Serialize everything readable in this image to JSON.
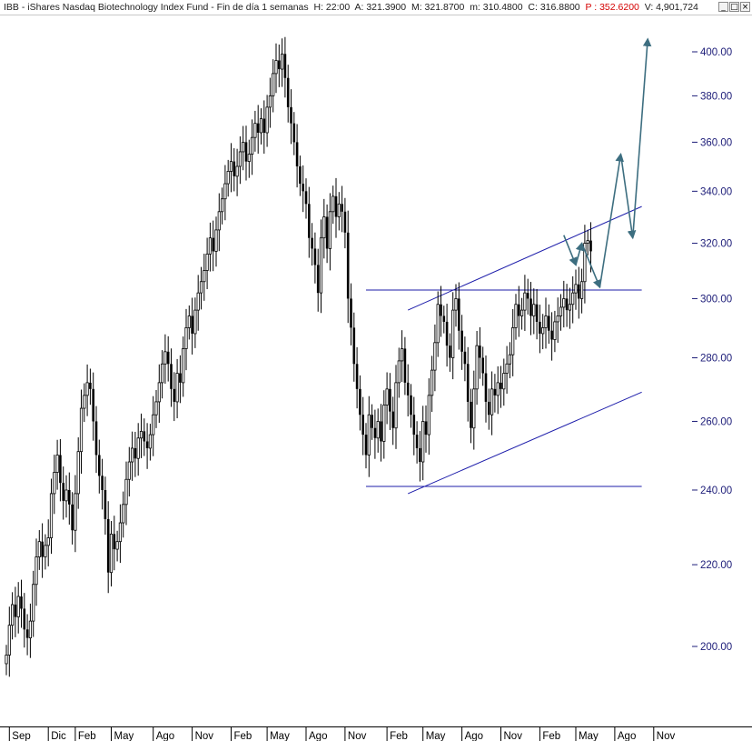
{
  "header": {
    "symbol": "IBB",
    "name": "iShares Nasdaq Biotechnology Index Fund",
    "period": "Fin de día 1 semanas",
    "h_label": "H:",
    "h_value": "22:00",
    "a_label": "A:",
    "a_value": "321.3900",
    "m_label": "M:",
    "m_value": "321.8700",
    "mn_label": "m:",
    "mn_value": "310.4800",
    "c_label": "C:",
    "c_value": "316.8800",
    "p_label": "P",
    "p_value": "352.6200",
    "v_label": "V:",
    "v_value": "4,901,724"
  },
  "window_buttons": {
    "min": "_",
    "max": "□",
    "close": "×"
  },
  "colors": {
    "candles": "#000000",
    "trendlines": "#1c1caa",
    "projection": "#3d6e80",
    "axis_text": "#1c1c78"
  },
  "chart_data": {
    "type": "candlestick",
    "y_scale": "log",
    "ylim": [
      185,
      410
    ],
    "y_ticks": [
      200,
      220,
      240,
      260,
      280,
      300,
      320,
      340,
      360,
      380,
      400
    ],
    "y_tick_labels": [
      "200.00",
      "220.00",
      "240.00",
      "260.00",
      "280.00",
      "300.00",
      "320.00",
      "340.00",
      "360.00",
      "380.00",
      "400.00"
    ],
    "x_labels": [
      {
        "label": "Sep",
        "i": 1
      },
      {
        "label": "Dic",
        "i": 14
      },
      {
        "label": "Feb",
        "i": 23
      },
      {
        "label": "May",
        "i": 35
      },
      {
        "label": "Ago",
        "i": 49
      },
      {
        "label": "Nov",
        "i": 62
      },
      {
        "label": "Feb",
        "i": 75
      },
      {
        "label": "May",
        "i": 87
      },
      {
        "label": "Ago",
        "i": 100
      },
      {
        "label": "Nov",
        "i": 113
      },
      {
        "label": "Feb",
        "i": 127
      },
      {
        "label": "May",
        "i": 139
      },
      {
        "label": "Ago",
        "i": 152
      },
      {
        "label": "Nov",
        "i": 165
      },
      {
        "label": "Feb",
        "i": 178
      },
      {
        "label": "May",
        "i": 190
      },
      {
        "label": "Ago",
        "i": 203
      },
      {
        "label": "Nov",
        "i": 216
      }
    ],
    "closes": [
      198,
      205,
      210,
      207,
      212,
      209,
      204,
      202,
      206,
      215,
      222,
      226,
      222,
      225,
      227,
      239,
      245,
      250,
      242,
      237,
      240,
      236,
      229,
      239,
      251,
      264,
      268,
      272,
      270,
      260,
      250,
      244,
      240,
      232,
      218,
      228,
      224,
      226,
      231,
      236,
      243,
      248,
      252,
      249,
      255,
      257,
      254,
      252,
      256,
      262,
      266,
      272,
      278,
      282,
      278,
      270,
      266,
      275,
      272,
      283,
      290,
      294,
      288,
      296,
      302,
      306,
      310,
      316,
      322,
      317,
      325,
      332,
      337,
      343,
      348,
      352,
      346,
      350,
      356,
      360,
      352,
      355,
      362,
      368,
      364,
      370,
      364,
      375,
      380,
      390,
      396,
      392,
      399,
      388,
      375,
      368,
      360,
      350,
      343,
      340,
      335,
      322,
      318,
      312,
      302,
      322,
      330,
      318,
      332,
      338,
      330,
      335,
      332,
      324,
      300,
      290,
      278,
      270,
      262,
      256,
      250,
      262,
      258,
      255,
      260,
      254,
      265,
      270,
      263,
      258,
      272,
      279,
      283,
      272,
      268,
      262,
      256,
      252,
      248,
      260,
      256,
      268,
      276,
      285,
      298,
      294,
      292,
      284,
      280,
      296,
      300,
      289,
      282,
      278,
      266,
      258,
      270,
      284,
      280,
      275,
      266,
      262,
      270,
      268,
      272,
      270,
      275,
      278,
      281,
      290,
      298,
      294,
      296,
      302,
      300,
      294,
      298,
      292,
      288,
      290,
      294,
      289,
      286,
      292,
      294,
      297,
      300,
      296,
      298,
      302,
      305,
      300,
      306,
      320,
      321,
      317
    ],
    "trendlines": [
      {
        "name": "resistance-horizontal",
        "from": [
          120,
          303
        ],
        "to": [
          212,
          303
        ]
      },
      {
        "name": "support-horizontal",
        "from": [
          120,
          241
        ],
        "to": [
          212,
          241
        ]
      },
      {
        "name": "channel-upper",
        "from": [
          134,
          296
        ],
        "to": [
          212,
          334
        ]
      },
      {
        "name": "channel-lower",
        "from": [
          134,
          239
        ],
        "to": [
          212,
          269
        ]
      }
    ],
    "projection": [
      [
        186,
        323
      ],
      [
        190,
        312
      ],
      [
        192,
        320
      ],
      [
        198,
        304
      ],
      [
        205,
        355
      ],
      [
        209,
        322
      ],
      [
        214,
        406
      ]
    ]
  }
}
